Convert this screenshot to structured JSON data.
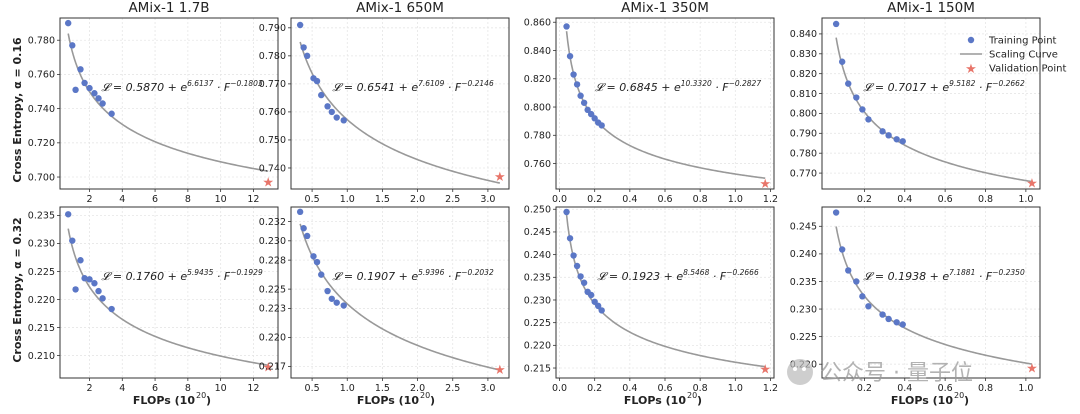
{
  "colors": {
    "point": "#5b77c6",
    "curve": "#999999",
    "star": "#e8756a",
    "grid": "#e6e6e6"
  },
  "figure": {
    "row_labels": [
      "Cross Entropy, α = 0.16",
      "Cross Entropy, α = 0.32"
    ],
    "xlabel": "FLOPs (10",
    "xlabel_sup": "20",
    "xlabel_end": ")",
    "legend": {
      "training": "Training Point",
      "curve": "Scaling Curve",
      "validation": "Validation Point"
    },
    "watermark": "公众号 · 量子位"
  },
  "chart_data": [
    {
      "type": "scatter",
      "title": "AMix-1 1.7B",
      "row": 0,
      "col": 0,
      "equation": {
        "pre": "𝓛 = 0.5870 + e",
        "exp": "6.6137",
        "post": " · F",
        "pow": "−0.1803"
      },
      "curve": {
        "c": 0.587,
        "a": 6.6137,
        "b": -0.1803
      },
      "xlim": [
        0.2,
        13.5
      ],
      "ylim": [
        0.693,
        0.793
      ],
      "xticks": [
        2,
        4,
        6,
        8,
        10,
        12
      ],
      "yticks": [
        0.7,
        0.72,
        0.74,
        0.76,
        0.78
      ],
      "ydec": 3,
      "xdec": 0,
      "training_x": [
        0.7,
        0.95,
        1.15,
        1.45,
        1.7,
        2.0,
        2.3,
        2.55,
        2.8,
        3.35
      ],
      "training_y": [
        0.79,
        0.777,
        0.751,
        0.763,
        0.755,
        0.752,
        0.749,
        0.746,
        0.743,
        0.737
      ],
      "validation": [
        12.9,
        0.697
      ]
    },
    {
      "type": "scatter",
      "title": "AMix-1 650M",
      "row": 0,
      "col": 1,
      "equation": {
        "pre": "𝓛 = 0.6541 + e",
        "exp": "7.6109",
        "post": " · F",
        "pow": "−0.2146"
      },
      "curve": {
        "c": 0.6541,
        "a": 7.6109,
        "b": -0.2146
      },
      "xlim": [
        0.2,
        3.3
      ],
      "ylim": [
        0.7325,
        0.7935
      ],
      "xticks": [
        0.5,
        1.0,
        1.5,
        2.0,
        2.5,
        3.0
      ],
      "yticks": [
        0.74,
        0.75,
        0.76,
        0.77,
        0.78,
        0.79
      ],
      "ydec": 3,
      "xdec": 1,
      "training_x": [
        0.33,
        0.38,
        0.43,
        0.52,
        0.57,
        0.63,
        0.72,
        0.78,
        0.85,
        0.95
      ],
      "training_y": [
        0.791,
        0.783,
        0.78,
        0.772,
        0.771,
        0.766,
        0.762,
        0.76,
        0.758,
        0.757
      ],
      "validation": [
        3.17,
        0.737
      ]
    },
    {
      "type": "scatter",
      "title": "AMix-1 350M",
      "row": 0,
      "col": 2,
      "equation": {
        "pre": "𝓛 = 0.6845 + e",
        "exp": "10.3320",
        "post": " · F",
        "pow": "−0.2827"
      },
      "curve": {
        "c": 0.6845,
        "a": 10.332,
        "b": -0.2827
      },
      "xlim": [
        -0.02,
        1.22
      ],
      "ylim": [
        0.742,
        0.863
      ],
      "xticks": [
        0.0,
        0.2,
        0.4,
        0.6,
        0.8,
        1.0,
        1.2
      ],
      "yticks": [
        0.76,
        0.78,
        0.8,
        0.82,
        0.84,
        0.86
      ],
      "ydec": 3,
      "xdec": 1,
      "training_x": [
        0.04,
        0.06,
        0.08,
        0.1,
        0.12,
        0.14,
        0.16,
        0.18,
        0.2,
        0.22,
        0.24
      ],
      "training_y": [
        0.857,
        0.836,
        0.823,
        0.816,
        0.808,
        0.803,
        0.798,
        0.795,
        0.792,
        0.789,
        0.787
      ],
      "validation": [
        1.17,
        0.746
      ]
    },
    {
      "type": "scatter",
      "title": "AMix-1 150M",
      "row": 0,
      "col": 3,
      "equation": {
        "pre": "𝓛 = 0.7017 + e",
        "exp": "9.5182",
        "post": " · F",
        "pow": "−0.2662"
      },
      "curve": {
        "c": 0.7017,
        "a": 9.5182,
        "b": -0.2662
      },
      "xlim": [
        -0.01,
        1.07
      ],
      "ylim": [
        0.762,
        0.848
      ],
      "xticks": [
        0.2,
        0.4,
        0.6,
        0.8,
        1.0
      ],
      "yticks": [
        0.77,
        0.78,
        0.79,
        0.8,
        0.81,
        0.82,
        0.83,
        0.84
      ],
      "ydec": 3,
      "xdec": 1,
      "training_x": [
        0.06,
        0.09,
        0.12,
        0.16,
        0.19,
        0.22,
        0.29,
        0.32,
        0.36,
        0.39
      ],
      "training_y": [
        0.845,
        0.826,
        0.815,
        0.808,
        0.802,
        0.797,
        0.791,
        0.789,
        0.787,
        0.786
      ],
      "validation": [
        1.03,
        0.765
      ]
    },
    {
      "type": "scatter",
      "title": "",
      "row": 1,
      "col": 0,
      "equation": {
        "pre": "𝓛 = 0.1760 + e",
        "exp": "5.9435",
        "post": " · F",
        "pow": "−0.1929"
      },
      "curve": {
        "c": 0.176,
        "a": 5.9435,
        "b": -0.1929
      },
      "xlim": [
        0.2,
        13.5
      ],
      "ylim": [
        0.206,
        0.2365
      ],
      "xticks": [
        2,
        4,
        6,
        8,
        10,
        12
      ],
      "yticks": [
        0.21,
        0.215,
        0.22,
        0.225,
        0.23,
        0.235
      ],
      "ydec": 3,
      "xdec": 0,
      "training_x": [
        0.7,
        0.95,
        1.15,
        1.45,
        1.7,
        2.0,
        2.3,
        2.55,
        2.8,
        3.35
      ],
      "training_y": [
        0.2352,
        0.2305,
        0.2218,
        0.227,
        0.2238,
        0.2236,
        0.2229,
        0.2215,
        0.2202,
        0.2183
      ],
      "validation": [
        12.9,
        0.208
      ]
    },
    {
      "type": "scatter",
      "title": "",
      "row": 1,
      "col": 1,
      "equation": {
        "pre": "𝓛 = 0.1907 + e",
        "exp": "5.9396",
        "post": " · F",
        "pow": "−0.2032"
      },
      "curve": {
        "c": 0.1907,
        "a": 5.9396,
        "b": -0.2032
      },
      "xlim": [
        0.2,
        3.3
      ],
      "ylim": [
        0.2158,
        0.2335
      ],
      "xticks": [
        0.5,
        1.0,
        1.5,
        2.0,
        2.5,
        3.0
      ],
      "yticks": [
        0.217,
        0.22,
        0.223,
        0.225,
        0.228,
        0.23,
        0.232
      ],
      "ytick_labels": [
        "0.217",
        "0.220",
        "0.223",
        "0.225",
        "0.228",
        "0.230",
        "0.232"
      ],
      "ydec": 3,
      "xdec": 1,
      "training_x": [
        0.33,
        0.38,
        0.43,
        0.52,
        0.57,
        0.63,
        0.72,
        0.78,
        0.85,
        0.95
      ],
      "training_y": [
        0.233,
        0.2313,
        0.2305,
        0.2284,
        0.2278,
        0.2265,
        0.2248,
        0.224,
        0.2236,
        0.2233
      ],
      "validation": [
        3.17,
        0.2167
      ]
    },
    {
      "type": "scatter",
      "title": "",
      "row": 1,
      "col": 2,
      "equation": {
        "pre": "𝓛 = 0.1923 + e",
        "exp": "8.5468",
        "post": " · F",
        "pow": "−0.2666"
      },
      "curve": {
        "c": 0.1923,
        "a": 8.5468,
        "b": -0.2666
      },
      "xlim": [
        -0.02,
        1.22
      ],
      "ylim": [
        0.2128,
        0.2505
      ],
      "xticks": [
        0.0,
        0.2,
        0.4,
        0.6,
        0.8,
        1.0,
        1.2
      ],
      "yticks": [
        0.215,
        0.22,
        0.225,
        0.23,
        0.235,
        0.24,
        0.245,
        0.25
      ],
      "ydec": 3,
      "xdec": 1,
      "training_x": [
        0.04,
        0.06,
        0.08,
        0.1,
        0.12,
        0.14,
        0.16,
        0.18,
        0.2,
        0.22,
        0.24
      ],
      "training_y": [
        0.2494,
        0.2436,
        0.2398,
        0.2375,
        0.2352,
        0.2338,
        0.2318,
        0.2311,
        0.2296,
        0.2287,
        0.2277
      ],
      "validation": [
        1.17,
        0.2148
      ]
    },
    {
      "type": "scatter",
      "title": "",
      "row": 1,
      "col": 3,
      "equation": {
        "pre": "𝓛 = 0.1938 + e",
        "exp": "7.1881",
        "post": " · F",
        "pow": "−0.2350"
      },
      "curve": {
        "c": 0.1938,
        "a": 7.1881,
        "b": -0.235
      },
      "xlim": [
        -0.01,
        1.07
      ],
      "ylim": [
        0.2175,
        0.2485
      ],
      "xticks": [
        0.2,
        0.4,
        0.6,
        0.8,
        1.0
      ],
      "yticks": [
        0.22,
        0.225,
        0.23,
        0.235,
        0.24,
        0.245
      ],
      "ydec": 3,
      "xdec": 1,
      "training_x": [
        0.06,
        0.09,
        0.12,
        0.16,
        0.19,
        0.22,
        0.29,
        0.32,
        0.36,
        0.39
      ],
      "training_y": [
        0.2475,
        0.2408,
        0.237,
        0.235,
        0.2323,
        0.2305,
        0.229,
        0.2282,
        0.2276,
        0.2272
      ],
      "validation": [
        1.03,
        0.2193
      ]
    }
  ]
}
